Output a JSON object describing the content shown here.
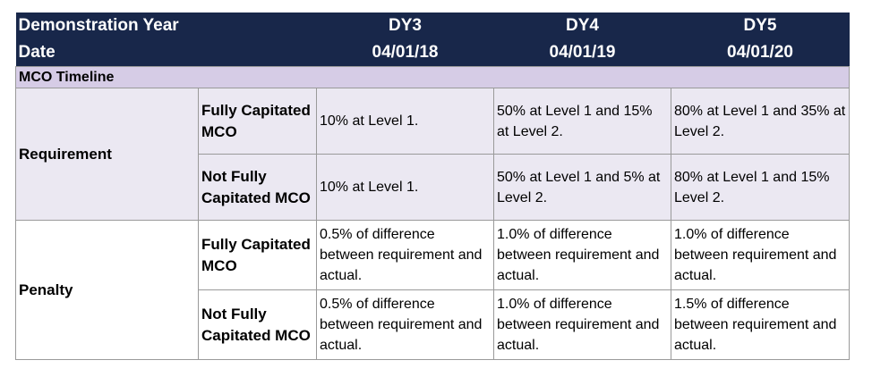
{
  "header": {
    "row1_label": "Demonstration Year",
    "row2_label": "Date",
    "years": [
      {
        "year": "DY3",
        "date": "04/01/18"
      },
      {
        "year": "DY4",
        "date": "04/01/19"
      },
      {
        "year": "DY5",
        "date": "04/01/20"
      }
    ]
  },
  "section_title": "MCO Timeline",
  "groups": [
    {
      "label": "Requirement",
      "rows": [
        {
          "type": "Fully Capitated MCO",
          "values": [
            "10% at Level 1.",
            "50% at Level 1 and 15% at Level 2.",
            "80% at Level 1 and 35% at Level 2."
          ]
        },
        {
          "type": "Not Fully Capitated MCO",
          "values": [
            "10% at Level 1.",
            "50% at Level 1 and 5% at Level 2.",
            "80% at Level 1 and 15%  Level 2."
          ]
        }
      ]
    },
    {
      "label": "Penalty",
      "rows": [
        {
          "type": "Fully Capitated MCO",
          "values": [
            "0.5% of difference between requirement and actual.",
            "1.0% of difference between requirement and actual.",
            "1.0% of difference between requirement and actual."
          ]
        },
        {
          "type": "Not Fully Capitated MCO",
          "values": [
            "0.5% of difference between requirement and actual.",
            "1.0% of difference between requirement and actual.",
            "1.5% of difference between requirement and actual."
          ]
        }
      ]
    }
  ]
}
